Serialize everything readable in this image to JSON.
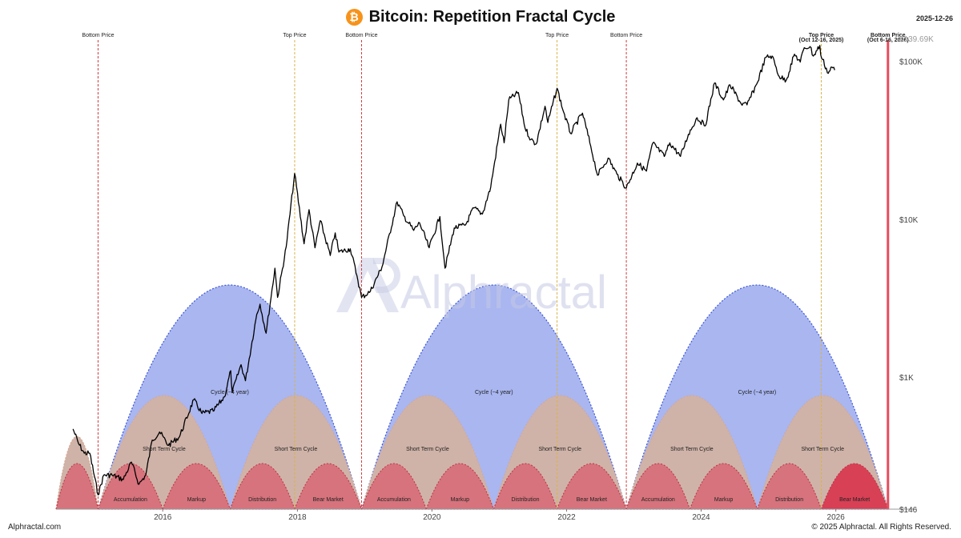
{
  "header": {
    "title": "Bitcoin: Repetition Fractal Cycle",
    "logo_icon": "bitcoin-icon",
    "logo_color": "#f7931a",
    "logo_glyph": "₿",
    "date": "2025-12-26"
  },
  "footer": {
    "site": "Alphractal.com",
    "copyright": "© 2025 Alphractal. All Rights Reserved."
  },
  "watermark": "Alphractal",
  "colors": {
    "cycle_fill": "#a9b6f0",
    "cycle_stroke": "#3c57d6",
    "short_fill": "#cfb3a8",
    "short_stroke": "#d9a58c",
    "phase_fill": "#d6737c",
    "phase_stroke": "#c23044",
    "bear_highlight": "#d84055",
    "price_line": "#000000",
    "bottom_line": "#d23a3a",
    "top_line": "#d8b34a",
    "final_bottom_band": "#e64b5c"
  },
  "chart_data": {
    "type": "line",
    "title": "Bitcoin: Repetition Fractal Cycle",
    "y_scale": "log",
    "ylim": [
      146,
      139690
    ],
    "xlim": [
      "2014-06-01",
      "2026-11-20"
    ],
    "x_ticks": [
      {
        "date": "2016-01-01",
        "label": "2016"
      },
      {
        "date": "2018-01-01",
        "label": "2018"
      },
      {
        "date": "2020-01-01",
        "label": "2020"
      },
      {
        "date": "2022-01-01",
        "label": "2022"
      },
      {
        "date": "2024-01-01",
        "label": "2024"
      },
      {
        "date": "2026-01-01",
        "label": "2026"
      }
    ],
    "y_ticks": [
      {
        "value": 139690,
        "label": "$139.69K",
        "muted": true
      },
      {
        "value": 100000,
        "label": "$100K"
      },
      {
        "value": 10000,
        "label": "$10K"
      },
      {
        "value": 1000,
        "label": "$1K"
      },
      {
        "value": 146,
        "label": "$146"
      }
    ],
    "vertical_markers": [
      {
        "date": "2015-01-15",
        "label": "Bottom Price",
        "kind": "bottom"
      },
      {
        "date": "2017-12-17",
        "label": "Top Price",
        "kind": "top"
      },
      {
        "date": "2018-12-15",
        "label": "Bottom Price",
        "kind": "bottom"
      },
      {
        "date": "2021-11-10",
        "label": "Top Price",
        "kind": "top"
      },
      {
        "date": "2022-11-21",
        "label": "Bottom Price",
        "kind": "bottom"
      },
      {
        "date": "2025-10-14",
        "label": "Top Price",
        "sublabel": "(Oct 12-16, 2025)",
        "kind": "top"
      },
      {
        "date": "2026-10-11",
        "label": "Bottom Price",
        "sublabel": "(Oct 6-16, 2026)",
        "kind": "bottom"
      }
    ],
    "cycles": [
      {
        "start": "2015-01-15",
        "end": "2018-12-15",
        "label": "Cycle (~4 year)"
      },
      {
        "start": "2018-12-15",
        "end": "2022-11-21",
        "label": "Cycle (~4 year)"
      },
      {
        "start": "2022-11-21",
        "end": "2026-10-11",
        "label": "Cycle (~4 year)"
      }
    ],
    "short_cycles": [
      {
        "start": "2014-06-01",
        "end": "2015-01-15",
        "label": ""
      },
      {
        "start": "2015-01-15",
        "end": "2017-01-01",
        "label": "Short Term Cycle"
      },
      {
        "start": "2017-01-01",
        "end": "2018-12-15",
        "label": "Short Term Cycle"
      },
      {
        "start": "2018-12-15",
        "end": "2020-12-01",
        "label": "Short Term Cycle"
      },
      {
        "start": "2020-12-01",
        "end": "2022-11-21",
        "label": "Short Term Cycle"
      },
      {
        "start": "2022-11-21",
        "end": "2024-11-01",
        "label": "Short Term Cycle"
      },
      {
        "start": "2024-11-01",
        "end": "2026-10-11",
        "label": "Short Term Cycle"
      }
    ],
    "phases": [
      {
        "start": "2014-06-01",
        "end": "2015-01-15",
        "label": "",
        "highlight": false
      },
      {
        "start": "2015-01-15",
        "end": "2016-01-01",
        "label": "Accumulation",
        "highlight": false
      },
      {
        "start": "2016-01-01",
        "end": "2017-01-01",
        "label": "Markup",
        "highlight": false
      },
      {
        "start": "2017-01-01",
        "end": "2017-12-17",
        "label": "Distribution",
        "highlight": false
      },
      {
        "start": "2017-12-17",
        "end": "2018-12-15",
        "label": "Bear Market",
        "highlight": false
      },
      {
        "start": "2018-12-15",
        "end": "2019-12-01",
        "label": "Accumulation",
        "highlight": false
      },
      {
        "start": "2019-12-01",
        "end": "2020-12-01",
        "label": "Markup",
        "highlight": false
      },
      {
        "start": "2020-12-01",
        "end": "2021-11-10",
        "label": "Distribution",
        "highlight": false
      },
      {
        "start": "2021-11-10",
        "end": "2022-11-21",
        "label": "Bear Market",
        "highlight": false
      },
      {
        "start": "2022-11-21",
        "end": "2023-11-01",
        "label": "Accumulation",
        "highlight": false
      },
      {
        "start": "2023-11-01",
        "end": "2024-11-01",
        "label": "Markup",
        "highlight": false
      },
      {
        "start": "2024-11-01",
        "end": "2025-10-14",
        "label": "Distribution",
        "highlight": false
      },
      {
        "start": "2025-10-14",
        "end": "2026-10-11",
        "label": "Bear Market",
        "highlight": true
      }
    ],
    "series": [
      {
        "points": [
          [
            "2014-09-01",
            470
          ],
          [
            "2014-10-01",
            380
          ],
          [
            "2014-11-01",
            330
          ],
          [
            "2014-12-01",
            330
          ],
          [
            "2015-01-15",
            180
          ],
          [
            "2015-02-15",
            240
          ],
          [
            "2015-04-01",
            240
          ],
          [
            "2015-06-01",
            225
          ],
          [
            "2015-07-15",
            290
          ],
          [
            "2015-08-25",
            210
          ],
          [
            "2015-10-01",
            240
          ],
          [
            "2015-11-05",
            400
          ],
          [
            "2015-12-15",
            450
          ],
          [
            "2016-02-01",
            370
          ],
          [
            "2016-04-01",
            420
          ],
          [
            "2016-06-17",
            720
          ],
          [
            "2016-08-01",
            590
          ],
          [
            "2016-10-01",
            610
          ],
          [
            "2016-12-01",
            750
          ],
          [
            "2017-01-04",
            1100
          ],
          [
            "2017-01-12",
            800
          ],
          [
            "2017-03-01",
            1200
          ],
          [
            "2017-03-25",
            950
          ],
          [
            "2017-05-25",
            2500
          ],
          [
            "2017-06-12",
            2900
          ],
          [
            "2017-07-15",
            1900
          ],
          [
            "2017-09-01",
            4900
          ],
          [
            "2017-09-15",
            3200
          ],
          [
            "2017-11-01",
            6700
          ],
          [
            "2017-12-17",
            19500
          ],
          [
            "2018-02-06",
            7000
          ],
          [
            "2018-03-05",
            11500
          ],
          [
            "2018-04-06",
            6600
          ],
          [
            "2018-05-05",
            9800
          ],
          [
            "2018-06-28",
            5900
          ],
          [
            "2018-07-25",
            8200
          ],
          [
            "2018-08-14",
            6200
          ],
          [
            "2018-10-15",
            6500
          ],
          [
            "2018-11-20",
            4400
          ],
          [
            "2018-12-15",
            3200
          ],
          [
            "2019-02-01",
            3500
          ],
          [
            "2019-04-05",
            5000
          ],
          [
            "2019-06-26",
            12900
          ],
          [
            "2019-08-01",
            10500
          ],
          [
            "2019-09-24",
            8500
          ],
          [
            "2019-10-26",
            9500
          ],
          [
            "2019-12-17",
            6600
          ],
          [
            "2020-02-13",
            10400
          ],
          [
            "2020-03-12",
            4900
          ],
          [
            "2020-05-01",
            8800
          ],
          [
            "2020-07-01",
            9200
          ],
          [
            "2020-08-15",
            11800
          ],
          [
            "2020-10-01",
            10800
          ],
          [
            "2020-11-15",
            16000
          ],
          [
            "2021-01-08",
            40000
          ],
          [
            "2021-01-27",
            30500
          ],
          [
            "2021-02-21",
            57000
          ],
          [
            "2021-04-14",
            63500
          ],
          [
            "2021-05-20",
            38000
          ],
          [
            "2021-06-21",
            32000
          ],
          [
            "2021-07-20",
            30000
          ],
          [
            "2021-09-06",
            52000
          ],
          [
            "2021-09-21",
            41000
          ],
          [
            "2021-11-10",
            67500
          ],
          [
            "2021-12-15",
            48000
          ],
          [
            "2022-01-22",
            35000
          ],
          [
            "2022-03-28",
            47000
          ],
          [
            "2022-05-12",
            29000
          ],
          [
            "2022-06-18",
            19000
          ],
          [
            "2022-08-14",
            24400
          ],
          [
            "2022-10-01",
            19300
          ],
          [
            "2022-11-21",
            15800
          ],
          [
            "2023-01-20",
            22700
          ],
          [
            "2023-03-10",
            20200
          ],
          [
            "2023-04-14",
            30400
          ],
          [
            "2023-06-15",
            25000
          ],
          [
            "2023-07-15",
            30500
          ],
          [
            "2023-09-11",
            25000
          ],
          [
            "2023-10-24",
            34500
          ],
          [
            "2023-12-10",
            44000
          ],
          [
            "2024-01-23",
            39000
          ],
          [
            "2024-03-14",
            73000
          ],
          [
            "2024-05-01",
            57000
          ],
          [
            "2024-06-06",
            71000
          ],
          [
            "2024-08-05",
            54000
          ],
          [
            "2024-09-06",
            53000
          ],
          [
            "2024-10-29",
            72000
          ],
          [
            "2024-12-17",
            106000
          ],
          [
            "2025-01-20",
            108000
          ],
          [
            "2025-02-28",
            80000
          ],
          [
            "2025-04-07",
            76000
          ],
          [
            "2025-05-22",
            111000
          ],
          [
            "2025-06-22",
            99000
          ],
          [
            "2025-07-14",
            122000
          ],
          [
            "2025-08-14",
            124000
          ],
          [
            "2025-09-01",
            108000
          ],
          [
            "2025-10-06",
            126000
          ],
          [
            "2025-10-11",
            110000
          ],
          [
            "2025-11-21",
            84000
          ],
          [
            "2025-12-10",
            92000
          ],
          [
            "2025-12-26",
            88000
          ]
        ]
      }
    ]
  }
}
